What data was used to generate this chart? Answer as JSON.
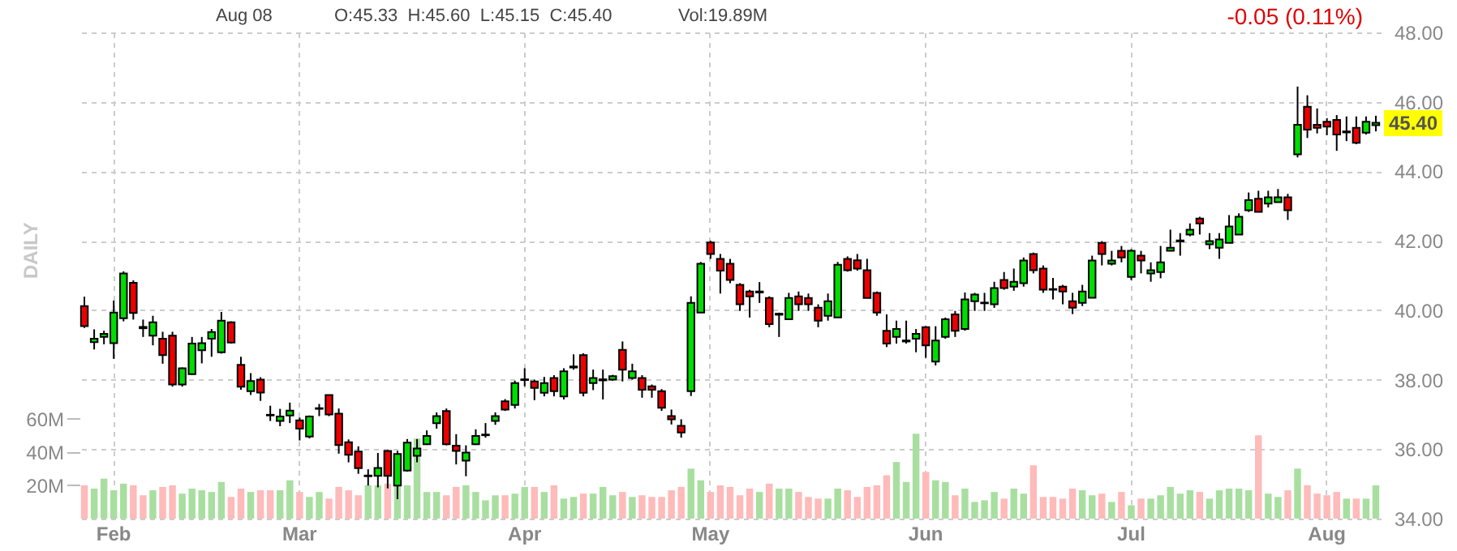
{
  "chart_data": {
    "type": "candlestick",
    "annotations": [
      "Aug 08",
      "O:45.33  H:45.60  L:45.15  C:45.40",
      "Vol:19.89M",
      "-0.05 (0.11%)",
      "DAILY",
      "45.40"
    ],
    "categories": [
      null,
      null,
      null,
      "Feb",
      null,
      null,
      null,
      null,
      null,
      null,
      null,
      null,
      null,
      null,
      null,
      null,
      null,
      null,
      null,
      null,
      null,
      null,
      "Mar",
      null,
      null,
      null,
      null,
      null,
      null,
      null,
      null,
      null,
      null,
      null,
      null,
      null,
      null,
      null,
      null,
      null,
      null,
      null,
      null,
      null,
      null,
      "Apr",
      null,
      null,
      null,
      null,
      null,
      null,
      null,
      null,
      null,
      null,
      null,
      null,
      null,
      null,
      null,
      null,
      null,
      null,
      "May",
      null,
      null,
      null,
      null,
      null,
      null,
      null,
      null,
      null,
      null,
      null,
      null,
      null,
      null,
      null,
      null,
      null,
      null,
      null,
      null,
      null,
      "Jun",
      null,
      null,
      null,
      null,
      null,
      null,
      null,
      null,
      null,
      null,
      null,
      null,
      null,
      null,
      null,
      null,
      null,
      null,
      null,
      null,
      "Jul",
      null,
      null,
      null,
      null,
      null,
      null,
      null,
      null,
      null,
      null,
      null,
      null,
      null,
      null,
      null,
      null,
      null,
      null,
      null,
      "Aug",
      null,
      null,
      null,
      null,
      null
    ],
    "ohlc": [
      [
        40.12,
        40.39,
        39.49,
        39.54
      ],
      [
        39.08,
        39.45,
        38.87,
        39.18
      ],
      [
        39.23,
        39.41,
        39.02,
        39.32
      ],
      [
        39.05,
        40.28,
        38.6,
        39.93
      ],
      [
        39.77,
        41.12,
        39.68,
        41.06
      ],
      [
        40.79,
        40.86,
        39.73,
        39.92
      ],
      [
        39.52,
        39.73,
        39.23,
        39.48
      ],
      [
        39.27,
        39.84,
        38.99,
        39.65
      ],
      [
        39.18,
        39.38,
        38.46,
        38.71
      ],
      [
        39.27,
        39.38,
        37.8,
        37.86
      ],
      [
        37.86,
        38.35,
        37.8,
        38.33
      ],
      [
        38.16,
        39.23,
        38.14,
        39.04
      ],
      [
        38.85,
        39.23,
        38.47,
        39.05
      ],
      [
        39.18,
        39.46,
        38.66,
        39.37
      ],
      [
        38.79,
        39.95,
        38.75,
        39.7
      ],
      [
        39.65,
        39.68,
        39.04,
        39.07
      ],
      [
        38.43,
        38.66,
        37.71,
        37.8
      ],
      [
        37.67,
        38.19,
        37.56,
        37.96
      ],
      [
        38.0,
        38.07,
        37.39,
        37.63
      ],
      [
        36.99,
        37.25,
        36.81,
        36.97
      ],
      [
        36.81,
        37.16,
        36.66,
        36.94
      ],
      [
        36.97,
        37.34,
        36.75,
        37.11
      ],
      [
        36.83,
        36.91,
        36.25,
        36.59
      ],
      [
        36.36,
        36.97,
        36.31,
        36.94
      ],
      [
        37.16,
        37.3,
        36.95,
        37.18
      ],
      [
        37.56,
        37.56,
        36.95,
        37.0
      ],
      [
        37.02,
        37.17,
        35.87,
        36.12
      ],
      [
        36.2,
        36.28,
        35.62,
        35.84
      ],
      [
        35.93,
        36.08,
        35.29,
        35.45
      ],
      [
        35.22,
        35.42,
        34.95,
        35.24
      ],
      [
        35.23,
        35.89,
        34.9,
        35.46
      ],
      [
        35.95,
        35.97,
        34.87,
        35.23
      ],
      [
        34.95,
        35.95,
        34.56,
        35.86
      ],
      [
        35.38,
        36.29,
        35.35,
        36.19
      ],
      [
        35.81,
        36.29,
        35.62,
        36.02
      ],
      [
        36.14,
        36.54,
        36.12,
        36.38
      ],
      [
        36.75,
        37.06,
        36.59,
        36.95
      ],
      [
        37.1,
        37.17,
        36.11,
        36.14
      ],
      [
        36.1,
        36.43,
        35.56,
        35.95
      ],
      [
        35.67,
        36.11,
        35.22,
        35.9
      ],
      [
        36.14,
        36.57,
        36.12,
        36.38
      ],
      [
        36.4,
        36.75,
        36.33,
        36.42
      ],
      [
        36.81,
        37.06,
        36.7,
        36.95
      ],
      [
        37.38,
        37.44,
        37.1,
        37.14
      ],
      [
        37.27,
        37.97,
        37.17,
        37.9
      ],
      [
        37.99,
        38.33,
        37.81,
        38.01
      ],
      [
        37.95,
        38.0,
        37.41,
        37.76
      ],
      [
        37.62,
        38.08,
        37.52,
        37.9
      ],
      [
        38.05,
        38.13,
        37.52,
        37.67
      ],
      [
        37.52,
        38.33,
        37.43,
        38.24
      ],
      [
        38.35,
        38.73,
        38.29,
        38.38
      ],
      [
        38.71,
        38.76,
        37.52,
        37.62
      ],
      [
        37.9,
        38.29,
        37.7,
        38.05
      ],
      [
        37.98,
        38.29,
        37.43,
        38.01
      ],
      [
        38.0,
        38.14,
        37.97,
        38.1
      ],
      [
        38.86,
        39.1,
        37.95,
        38.29
      ],
      [
        38.05,
        38.46,
        38.0,
        38.24
      ],
      [
        38.05,
        38.13,
        37.48,
        37.71
      ],
      [
        37.81,
        37.86,
        37.48,
        37.71
      ],
      [
        37.67,
        37.73,
        37.1,
        37.19
      ],
      [
        36.95,
        37.14,
        36.71,
        36.86
      ],
      [
        36.67,
        36.86,
        36.33,
        36.48
      ],
      [
        37.67,
        40.4,
        37.53,
        40.21
      ],
      [
        39.93,
        41.39,
        39.93,
        41.34
      ],
      [
        41.95,
        42.0,
        41.48,
        41.62
      ],
      [
        41.48,
        41.62,
        40.48,
        41.14
      ],
      [
        41.34,
        41.48,
        40.78,
        40.87
      ],
      [
        40.73,
        40.78,
        39.98,
        40.17
      ],
      [
        40.54,
        40.59,
        39.79,
        40.4
      ],
      [
        40.51,
        40.81,
        40.21,
        40.54
      ],
      [
        40.35,
        40.4,
        39.51,
        39.6
      ],
      [
        39.87,
        39.93,
        39.23,
        39.9
      ],
      [
        39.74,
        40.5,
        39.74,
        40.35
      ],
      [
        40.4,
        40.54,
        39.98,
        40.17
      ],
      [
        40.35,
        40.48,
        39.98,
        40.17
      ],
      [
        40.07,
        40.17,
        39.51,
        39.7
      ],
      [
        39.84,
        40.48,
        39.7,
        40.26
      ],
      [
        39.79,
        41.39,
        39.79,
        41.31
      ],
      [
        41.48,
        41.55,
        41.11,
        41.15
      ],
      [
        41.44,
        41.62,
        41.14,
        41.2
      ],
      [
        41.15,
        41.48,
        40.35,
        40.35
      ],
      [
        40.5,
        40.54,
        39.84,
        39.93
      ],
      [
        39.41,
        39.88,
        38.94,
        39.04
      ],
      [
        39.23,
        39.7,
        39.04,
        39.46
      ],
      [
        39.1,
        39.7,
        39.04,
        39.13
      ],
      [
        39.18,
        39.46,
        38.79,
        39.32
      ],
      [
        39.51,
        39.54,
        38.63,
        38.99
      ],
      [
        38.52,
        39.54,
        38.41,
        39.13
      ],
      [
        39.23,
        39.79,
        39.18,
        39.74
      ],
      [
        39.88,
        39.98,
        39.23,
        39.41
      ],
      [
        39.46,
        40.51,
        39.41,
        40.31
      ],
      [
        40.26,
        40.5,
        39.98,
        40.45
      ],
      [
        40.2,
        40.5,
        39.98,
        40.22
      ],
      [
        40.17,
        40.82,
        40.07,
        40.64
      ],
      [
        40.87,
        41.1,
        40.59,
        40.64
      ],
      [
        40.68,
        41.2,
        40.56,
        40.82
      ],
      [
        40.78,
        41.52,
        40.68,
        41.43
      ],
      [
        41.62,
        41.66,
        41.06,
        41.15
      ],
      [
        41.2,
        41.29,
        40.5,
        40.59
      ],
      [
        40.61,
        40.93,
        40.31,
        40.59
      ],
      [
        40.68,
        40.73,
        40.17,
        40.54
      ],
      [
        40.26,
        40.5,
        39.89,
        40.07
      ],
      [
        40.21,
        40.73,
        40.12,
        40.54
      ],
      [
        40.36,
        41.57,
        40.36,
        41.43
      ],
      [
        41.94,
        41.99,
        41.29,
        41.62
      ],
      [
        41.34,
        41.71,
        41.29,
        41.43
      ],
      [
        41.71,
        41.85,
        41.38,
        41.52
      ],
      [
        40.96,
        41.76,
        40.87,
        41.71
      ],
      [
        41.57,
        41.71,
        41.06,
        41.43
      ],
      [
        41.06,
        41.38,
        40.82,
        41.15
      ],
      [
        41.1,
        41.85,
        40.92,
        41.38
      ],
      [
        41.71,
        42.32,
        41.71,
        41.8
      ],
      [
        41.98,
        42.22,
        41.57,
        42.01
      ],
      [
        42.18,
        42.5,
        42.13,
        42.32
      ],
      [
        42.64,
        42.69,
        42.18,
        42.5
      ],
      [
        41.9,
        42.22,
        41.76,
        41.99
      ],
      [
        41.8,
        42.22,
        41.48,
        42.04
      ],
      [
        41.94,
        42.74,
        41.94,
        42.41
      ],
      [
        42.18,
        42.79,
        42.18,
        42.69
      ],
      [
        42.88,
        43.39,
        42.83,
        43.17
      ],
      [
        43.21,
        43.44,
        42.83,
        42.83
      ],
      [
        43.07,
        43.44,
        42.96,
        43.25
      ],
      [
        43.11,
        43.49,
        43.11,
        43.25
      ],
      [
        43.25,
        43.35,
        42.6,
        42.88
      ],
      [
        44.49,
        46.44,
        44.4,
        45.34
      ],
      [
        45.86,
        46.19,
        44.96,
        45.2
      ],
      [
        45.34,
        45.81,
        45.09,
        45.25
      ],
      [
        45.43,
        45.53,
        45.04,
        45.29
      ],
      [
        45.48,
        45.62,
        44.59,
        45.06
      ],
      [
        45.12,
        45.58,
        44.87,
        45.15
      ],
      [
        45.25,
        45.58,
        44.78,
        44.82
      ],
      [
        45.11,
        45.58,
        45.06,
        45.43
      ],
      [
        45.33,
        45.6,
        45.15,
        45.4
      ]
    ],
    "colors": [
      "#ee0000",
      "#00dd00",
      "#00dd00",
      "#00dd00",
      "#00dd00",
      "#ee0000",
      "#ee0000",
      "#00dd00",
      "#ee0000",
      "#ee0000",
      "#00dd00",
      "#00dd00",
      "#00dd00",
      "#00dd00",
      "#00dd00",
      "#ee0000",
      "#ee0000",
      "#00dd00",
      "#ee0000",
      "#ee0000",
      "#00dd00",
      "#00dd00",
      "#ee0000",
      "#00dd00",
      "#00dd00",
      "#ee0000",
      "#ee0000",
      "#ee0000",
      "#ee0000",
      "#00dd00",
      "#00dd00",
      "#ee0000",
      "#00dd00",
      "#00dd00",
      "#00dd00",
      "#00dd00",
      "#00dd00",
      "#ee0000",
      "#ee0000",
      "#00dd00",
      "#00dd00",
      "#00dd00",
      "#00dd00",
      "#ee0000",
      "#00dd00",
      "#00dd00",
      "#ee0000",
      "#00dd00",
      "#ee0000",
      "#00dd00",
      "#00dd00",
      "#ee0000",
      "#00dd00",
      "#00dd00",
      "#00dd00",
      "#ee0000",
      "#00dd00",
      "#ee0000",
      "#ee0000",
      "#ee0000",
      "#ee0000",
      "#ee0000",
      "#00dd00",
      "#00dd00",
      "#ee0000",
      "#ee0000",
      "#ee0000",
      "#ee0000",
      "#ee0000",
      "#00dd00",
      "#ee0000",
      "#00dd00",
      "#00dd00",
      "#ee0000",
      "#ee0000",
      "#ee0000",
      "#00dd00",
      "#00dd00",
      "#ee0000",
      "#ee0000",
      "#ee0000",
      "#ee0000",
      "#ee0000",
      "#00dd00",
      "#00dd00",
      "#00dd00",
      "#ee0000",
      "#00dd00",
      "#00dd00",
      "#ee0000",
      "#00dd00",
      "#00dd00",
      "#00dd00",
      "#00dd00",
      "#ee0000",
      "#00dd00",
      "#00dd00",
      "#ee0000",
      "#ee0000",
      "#ee0000",
      "#ee0000",
      "#ee0000",
      "#00dd00",
      "#00dd00",
      "#ee0000",
      "#00dd00",
      "#ee0000",
      "#00dd00",
      "#ee0000",
      "#00dd00",
      "#00dd00",
      "#00dd00",
      "#00dd00",
      "#00dd00",
      "#ee0000",
      "#00dd00",
      "#00dd00",
      "#00dd00",
      "#00dd00",
      "#00dd00",
      "#ee0000",
      "#00dd00",
      "#00dd00",
      "#ee0000",
      "#00dd00",
      "#ee0000",
      "#ee0000",
      "#ee0000",
      "#ee0000",
      "#00dd00",
      "#ee0000",
      "#00dd00",
      "#00dd00"
    ],
    "series": [
      {
        "type": "bar",
        "axis": "y2",
        "values": [
          20,
          18,
          24,
          17,
          21,
          20,
          14,
          17,
          19,
          20,
          15,
          18,
          17,
          16,
          22,
          13,
          18,
          16,
          17,
          17,
          17,
          23,
          16,
          13,
          16,
          12,
          19,
          17,
          14,
          20,
          20,
          21,
          22,
          20,
          48,
          16,
          16,
          14,
          19,
          20,
          16,
          11,
          14,
          14,
          15,
          19,
          19,
          16,
          20,
          12,
          13,
          15,
          15,
          19,
          14,
          16,
          13,
          14,
          13,
          13,
          17,
          19,
          30,
          23,
          16,
          20,
          19,
          14,
          18,
          16,
          21,
          18,
          18,
          16,
          13,
          12,
          12,
          18,
          17,
          13,
          19,
          20,
          26,
          34,
          22,
          51,
          28,
          23,
          22,
          14,
          18,
          10,
          11,
          16,
          12,
          18,
          15,
          32,
          13,
          13,
          12,
          18,
          17,
          14,
          15,
          10,
          16,
          8,
          12,
          12,
          14,
          19,
          15,
          17,
          16,
          12,
          17,
          18,
          18,
          17,
          50,
          15,
          13,
          17,
          30,
          20,
          15,
          14,
          16,
          12,
          12,
          12,
          20
        ],
        "colors": [
          "#ffbaba",
          "#a8dfa0",
          "#a8dfa0",
          "#a8dfa0",
          "#a8dfa0",
          "#ffbaba",
          "#ffbaba",
          "#a8dfa0",
          "#ffbaba",
          "#ffbaba",
          "#a8dfa0",
          "#a8dfa0",
          "#a8dfa0",
          "#a8dfa0",
          "#a8dfa0",
          "#ffbaba",
          "#ffbaba",
          "#a8dfa0",
          "#ffbaba",
          "#ffbaba",
          "#a8dfa0",
          "#a8dfa0",
          "#ffbaba",
          "#a8dfa0",
          "#a8dfa0",
          "#ffbaba",
          "#ffbaba",
          "#ffbaba",
          "#ffbaba",
          "#a8dfa0",
          "#a8dfa0",
          "#ffbaba",
          "#a8dfa0",
          "#a8dfa0",
          "#a8dfa0",
          "#a8dfa0",
          "#a8dfa0",
          "#ffbaba",
          "#ffbaba",
          "#a8dfa0",
          "#a8dfa0",
          "#a8dfa0",
          "#a8dfa0",
          "#ffbaba",
          "#a8dfa0",
          "#a8dfa0",
          "#ffbaba",
          "#a8dfa0",
          "#ffbaba",
          "#a8dfa0",
          "#a8dfa0",
          "#ffbaba",
          "#a8dfa0",
          "#a8dfa0",
          "#a8dfa0",
          "#ffbaba",
          "#a8dfa0",
          "#ffbaba",
          "#ffbaba",
          "#ffbaba",
          "#ffbaba",
          "#ffbaba",
          "#a8dfa0",
          "#a8dfa0",
          "#ffbaba",
          "#ffbaba",
          "#ffbaba",
          "#ffbaba",
          "#ffbaba",
          "#a8dfa0",
          "#ffbaba",
          "#a8dfa0",
          "#a8dfa0",
          "#ffbaba",
          "#ffbaba",
          "#ffbaba",
          "#a8dfa0",
          "#a8dfa0",
          "#ffbaba",
          "#ffbaba",
          "#ffbaba",
          "#ffbaba",
          "#ffbaba",
          "#a8dfa0",
          "#a8dfa0",
          "#a8dfa0",
          "#ffbaba",
          "#a8dfa0",
          "#a8dfa0",
          "#ffbaba",
          "#a8dfa0",
          "#a8dfa0",
          "#a8dfa0",
          "#a8dfa0",
          "#ffbaba",
          "#a8dfa0",
          "#a8dfa0",
          "#ffbaba",
          "#ffbaba",
          "#ffbaba",
          "#ffbaba",
          "#ffbaba",
          "#a8dfa0",
          "#a8dfa0",
          "#ffbaba",
          "#a8dfa0",
          "#ffbaba",
          "#a8dfa0",
          "#ffbaba",
          "#a8dfa0",
          "#a8dfa0",
          "#a8dfa0",
          "#a8dfa0",
          "#a8dfa0",
          "#ffbaba",
          "#a8dfa0",
          "#a8dfa0",
          "#a8dfa0",
          "#a8dfa0",
          "#a8dfa0",
          "#ffbaba",
          "#a8dfa0",
          "#a8dfa0",
          "#ffbaba",
          "#a8dfa0",
          "#ffbaba",
          "#ffbaba",
          "#ffbaba",
          "#ffbaba",
          "#a8dfa0",
          "#ffbaba",
          "#a8dfa0",
          "#a8dfa0"
        ]
      }
    ],
    "ylim": [
      34,
      48
    ],
    "yticks": [
      {
        "value": 34,
        "label": "34.00"
      },
      {
        "value": 36,
        "label": "36.00"
      },
      {
        "value": 38,
        "label": "38.00"
      },
      {
        "value": 40,
        "label": "40.00"
      },
      {
        "value": 42,
        "label": "42.00"
      },
      {
        "value": 44,
        "label": "44.00"
      },
      {
        "value": 46,
        "label": "46.00"
      },
      {
        "value": 48,
        "label": "48.00"
      }
    ],
    "y2lim": [
      0,
      292
    ],
    "y2ticks": [
      {
        "value": 20,
        "label": "20M"
      },
      {
        "value": 40,
        "label": "40M"
      },
      {
        "value": 60,
        "label": "60M"
      }
    ],
    "grid": true
  }
}
